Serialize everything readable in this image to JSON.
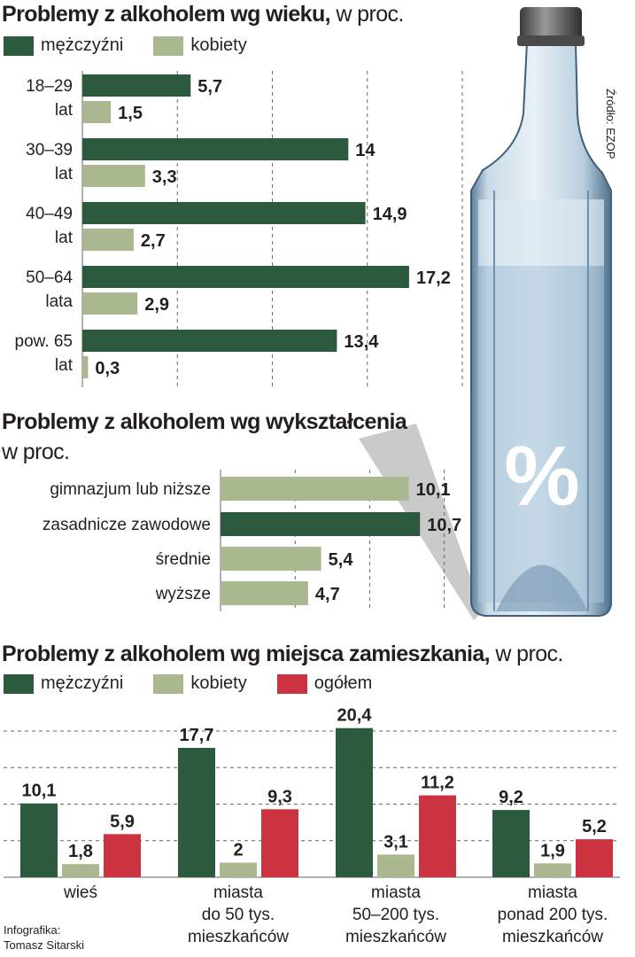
{
  "colors": {
    "men": "#2b5a3e",
    "women": "#aab88f",
    "total": "#cc3340",
    "grid": "#666666",
    "text": "#231f20"
  },
  "age_section": {
    "title": "Problemy z alkoholem wg wieku,",
    "unit": "w proc.",
    "legend": [
      "mężczyźni",
      "kobiety"
    ]
  },
  "education_section": {
    "title": "Problemy z alkoholem wg wykształcenia",
    "unit": "w proc."
  },
  "residence_section": {
    "title": "Problemy z alkoholem wg miejsca zamieszkania,",
    "unit": "w proc.",
    "legend": [
      "mężczyźni",
      "kobiety",
      "ogółem"
    ]
  },
  "credits": {
    "source": "Źródło: EZOP",
    "infographic_line1": "Infografika:",
    "infographic_line2": "Tomasz Sitarski"
  },
  "bottle": {
    "symbol": "%"
  },
  "chart_data": [
    {
      "type": "bar",
      "orientation": "horizontal",
      "title": "Problemy z alkoholem wg wieku,",
      "categories": [
        [
          "18–29",
          "lat"
        ],
        [
          "30–39",
          "lat"
        ],
        [
          "40–49",
          "lat"
        ],
        [
          "50–64",
          "lata"
        ],
        [
          "pow. 65",
          "lat"
        ]
      ],
      "series": [
        {
          "name": "mężczyźni",
          "values": [
            5.7,
            14,
            14.9,
            17.2,
            13.4
          ],
          "labels": [
            "5,7",
            "14",
            "14,9",
            "17,2",
            "13,4"
          ]
        },
        {
          "name": "kobiety",
          "values": [
            1.5,
            3.3,
            2.7,
            2.9,
            0.3
          ],
          "labels": [
            "1,5",
            "3,3",
            "2,7",
            "2,9",
            "0,3"
          ]
        }
      ],
      "xlim": [
        0,
        20
      ],
      "grid": true
    },
    {
      "type": "bar",
      "orientation": "horizontal",
      "title": "Problemy z alkoholem wg wykształcenia",
      "categories": [
        "gimnazjum lub niższe",
        "zasadnicze zawodowe",
        "średnie",
        "wyższe"
      ],
      "values": [
        10.1,
        10.7,
        5.4,
        4.7
      ],
      "labels": [
        "10,1",
        "10,7",
        "5,4",
        "4,7"
      ],
      "highlight": "zasadnicze zawodowe",
      "xlim": [
        0,
        13
      ],
      "grid": true
    },
    {
      "type": "bar",
      "orientation": "vertical",
      "title": "Problemy z alkoholem wg miejsca zamieszkania,",
      "categories": [
        [
          "wieś"
        ],
        [
          "miasta",
          "do 50 tys.",
          "mieszkańców"
        ],
        [
          "miasta",
          "50–200 tys.",
          "mieszkańców"
        ],
        [
          "miasta",
          "ponad 200 tys.",
          "mieszkańców"
        ]
      ],
      "series": [
        {
          "name": "mężczyźni",
          "values": [
            10.1,
            17.7,
            20.4,
            9.2
          ],
          "labels": [
            "10,1",
            "17,7",
            "20,4",
            "9,2"
          ]
        },
        {
          "name": "kobiety",
          "values": [
            1.8,
            2,
            3.1,
            1.9
          ],
          "labels": [
            "1,8",
            "2",
            "3,1",
            "1,9"
          ]
        },
        {
          "name": "ogółem",
          "values": [
            5.9,
            9.3,
            11.2,
            5.2
          ],
          "labels": [
            "5,9",
            "9,3",
            "11,2",
            "5,2"
          ]
        }
      ],
      "ylim": [
        0,
        25
      ],
      "grid": true
    }
  ]
}
